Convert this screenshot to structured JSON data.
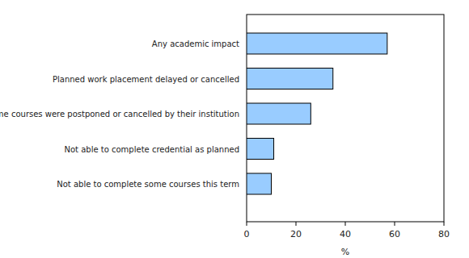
{
  "chart_data": {
    "type": "bar",
    "orientation": "horizontal",
    "categories": [
      "Any academic impact",
      "Planned work placement delayed or cancelled",
      "Some courses were postponed or cancelled by their institution",
      "Not able to complete credential as planned",
      "Not able to complete some courses this term"
    ],
    "values": [
      57,
      35,
      26,
      11,
      10
    ],
    "color": "#99ccff",
    "xlabel": "%",
    "xlim": [
      0,
      80
    ],
    "xticks": [
      0,
      20,
      40,
      60,
      80
    ],
    "grid": false,
    "data_labels": false
  }
}
